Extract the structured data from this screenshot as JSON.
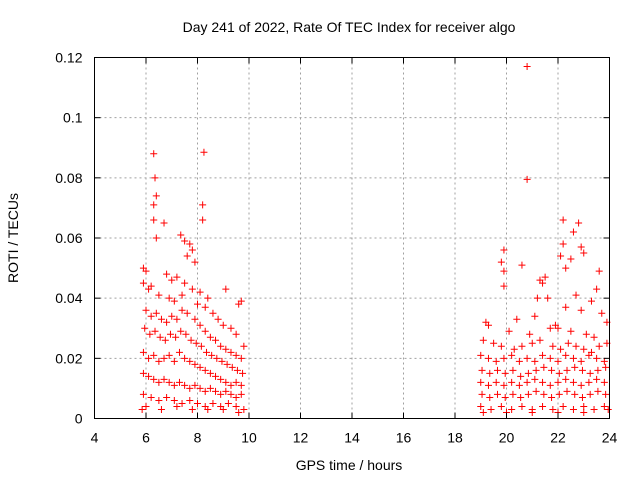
{
  "chart_data": {
    "type": "scatter",
    "title": "Day 241 of 2022, Rate Of TEC Index for receiver algo",
    "xlabel": "GPS time / hours",
    "ylabel": "ROTI / TECUs",
    "xlim": [
      4,
      24
    ],
    "ylim": [
      0,
      0.12
    ],
    "x_ticks": [
      "4",
      "6",
      "8",
      "10",
      "12",
      "14",
      "16",
      "18",
      "20",
      "22",
      "24"
    ],
    "y_ticks": [
      "0",
      "0.02",
      "0.04",
      "0.06",
      "0.08",
      "0.1",
      "0.12"
    ],
    "grid": true,
    "marker": "+",
    "color": "#ff0000",
    "points": [
      [
        6.3,
        0.088
      ],
      [
        8.25,
        0.0885
      ],
      [
        6.35,
        0.08
      ],
      [
        6.4,
        0.074
      ],
      [
        6.3,
        0.071
      ],
      [
        8.2,
        0.071
      ],
      [
        8.2,
        0.066
      ],
      [
        6.7,
        0.065
      ],
      [
        6.3,
        0.066
      ],
      [
        7.35,
        0.061
      ],
      [
        6.4,
        0.06
      ],
      [
        7.5,
        0.059
      ],
      [
        7.7,
        0.058
      ],
      [
        7.8,
        0.056
      ],
      [
        7.6,
        0.054
      ],
      [
        7.9,
        0.052
      ],
      [
        5.9,
        0.05
      ],
      [
        6.0,
        0.049
      ],
      [
        6.8,
        0.048
      ],
      [
        7.2,
        0.047
      ],
      [
        7.0,
        0.046
      ],
      [
        7.5,
        0.045
      ],
      [
        6.2,
        0.044
      ],
      [
        8.4,
        0.04
      ],
      [
        8.1,
        0.042
      ],
      [
        9.1,
        0.043
      ],
      [
        9.7,
        0.039
      ],
      [
        9.6,
        0.038
      ],
      [
        5.9,
        0.045
      ],
      [
        6.1,
        0.043
      ],
      [
        6.5,
        0.041
      ],
      [
        6.9,
        0.04
      ],
      [
        7.1,
        0.039
      ],
      [
        7.4,
        0.041
      ],
      [
        7.8,
        0.043
      ],
      [
        8.0,
        0.038
      ],
      [
        8.3,
        0.037
      ],
      [
        8.6,
        0.035
      ],
      [
        8.8,
        0.033
      ],
      [
        9.0,
        0.031
      ],
      [
        9.3,
        0.03
      ],
      [
        9.5,
        0.028
      ],
      [
        9.8,
        0.024
      ],
      [
        6.0,
        0.036
      ],
      [
        6.2,
        0.034
      ],
      [
        6.4,
        0.035
      ],
      [
        6.6,
        0.033
      ],
      [
        6.8,
        0.032
      ],
      [
        7.0,
        0.034
      ],
      [
        7.2,
        0.033
      ],
      [
        7.4,
        0.036
      ],
      [
        7.6,
        0.035
      ],
      [
        7.9,
        0.033
      ],
      [
        8.1,
        0.031
      ],
      [
        8.3,
        0.029
      ],
      [
        8.5,
        0.027
      ],
      [
        8.7,
        0.026
      ],
      [
        8.9,
        0.024
      ],
      [
        9.1,
        0.023
      ],
      [
        9.3,
        0.022
      ],
      [
        9.5,
        0.021
      ],
      [
        9.7,
        0.02
      ],
      [
        5.95,
        0.03
      ],
      [
        6.15,
        0.028
      ],
      [
        6.35,
        0.029
      ],
      [
        6.55,
        0.027
      ],
      [
        6.75,
        0.026
      ],
      [
        6.95,
        0.028
      ],
      [
        7.15,
        0.027
      ],
      [
        7.35,
        0.029
      ],
      [
        7.55,
        0.028
      ],
      [
        7.75,
        0.026
      ],
      [
        7.95,
        0.025
      ],
      [
        8.15,
        0.024
      ],
      [
        8.35,
        0.022
      ],
      [
        8.55,
        0.021
      ],
      [
        8.75,
        0.02
      ],
      [
        8.95,
        0.019
      ],
      [
        9.15,
        0.018
      ],
      [
        9.35,
        0.017
      ],
      [
        9.55,
        0.016
      ],
      [
        9.75,
        0.015
      ],
      [
        5.9,
        0.022
      ],
      [
        6.1,
        0.02
      ],
      [
        6.3,
        0.021
      ],
      [
        6.5,
        0.019
      ],
      [
        6.7,
        0.02
      ],
      [
        6.9,
        0.021
      ],
      [
        7.1,
        0.019
      ],
      [
        7.3,
        0.022
      ],
      [
        7.5,
        0.02
      ],
      [
        7.7,
        0.019
      ],
      [
        7.9,
        0.018
      ],
      [
        8.1,
        0.017
      ],
      [
        8.3,
        0.016
      ],
      [
        8.5,
        0.015
      ],
      [
        8.7,
        0.014
      ],
      [
        8.9,
        0.013
      ],
      [
        9.1,
        0.012
      ],
      [
        9.3,
        0.011
      ],
      [
        9.5,
        0.012
      ],
      [
        9.7,
        0.011
      ],
      [
        5.9,
        0.015
      ],
      [
        6.1,
        0.014
      ],
      [
        6.3,
        0.013
      ],
      [
        6.5,
        0.012
      ],
      [
        6.7,
        0.013
      ],
      [
        6.9,
        0.012
      ],
      [
        7.1,
        0.011
      ],
      [
        7.3,
        0.012
      ],
      [
        7.5,
        0.011
      ],
      [
        7.7,
        0.01
      ],
      [
        7.9,
        0.011
      ],
      [
        8.1,
        0.01
      ],
      [
        8.3,
        0.009
      ],
      [
        8.5,
        0.01
      ],
      [
        8.7,
        0.009
      ],
      [
        8.9,
        0.008
      ],
      [
        9.1,
        0.009
      ],
      [
        9.3,
        0.008
      ],
      [
        9.5,
        0.007
      ],
      [
        9.7,
        0.008
      ],
      [
        5.9,
        0.008
      ],
      [
        6.2,
        0.007
      ],
      [
        6.5,
        0.006
      ],
      [
        6.8,
        0.007
      ],
      [
        7.1,
        0.006
      ],
      [
        7.4,
        0.005
      ],
      [
        7.7,
        0.006
      ],
      [
        8.0,
        0.005
      ],
      [
        8.3,
        0.004
      ],
      [
        8.6,
        0.005
      ],
      [
        8.9,
        0.004
      ],
      [
        9.2,
        0.005
      ],
      [
        9.5,
        0.004
      ],
      [
        9.8,
        0.003
      ],
      [
        5.85,
        0.003
      ],
      [
        6.0,
        0.004
      ],
      [
        6.6,
        0.003
      ],
      [
        7.2,
        0.004
      ],
      [
        7.8,
        0.003
      ],
      [
        8.4,
        0.003
      ],
      [
        9.0,
        0.003
      ],
      [
        9.6,
        0.002
      ],
      [
        20.8,
        0.117
      ],
      [
        20.8,
        0.0795
      ],
      [
        22.2,
        0.066
      ],
      [
        22.8,
        0.065
      ],
      [
        22.6,
        0.062
      ],
      [
        22.2,
        0.058
      ],
      [
        22.9,
        0.057
      ],
      [
        19.9,
        0.056
      ],
      [
        23.0,
        0.055
      ],
      [
        22.1,
        0.054
      ],
      [
        22.5,
        0.053
      ],
      [
        19.8,
        0.052
      ],
      [
        20.6,
        0.051
      ],
      [
        22.3,
        0.05
      ],
      [
        19.9,
        0.049
      ],
      [
        23.6,
        0.049
      ],
      [
        21.5,
        0.047
      ],
      [
        21.3,
        0.046
      ],
      [
        21.4,
        0.045
      ],
      [
        23.5,
        0.043
      ],
      [
        21.2,
        0.04
      ],
      [
        19.9,
        0.044
      ],
      [
        21.6,
        0.04
      ],
      [
        23.3,
        0.039
      ],
      [
        22.7,
        0.041
      ],
      [
        22.9,
        0.036
      ],
      [
        22.3,
        0.037
      ],
      [
        23.7,
        0.035
      ],
      [
        21.1,
        0.034
      ],
      [
        20.4,
        0.033
      ],
      [
        19.2,
        0.032
      ],
      [
        19.3,
        0.031
      ],
      [
        23.9,
        0.032
      ],
      [
        21.9,
        0.031
      ],
      [
        22.0,
        0.03
      ],
      [
        20.1,
        0.029
      ],
      [
        20.9,
        0.028
      ],
      [
        21.7,
        0.03
      ],
      [
        22.5,
        0.029
      ],
      [
        23.1,
        0.028
      ],
      [
        23.4,
        0.027
      ],
      [
        19.1,
        0.026
      ],
      [
        19.5,
        0.025
      ],
      [
        19.8,
        0.024
      ],
      [
        20.3,
        0.023
      ],
      [
        20.6,
        0.024
      ],
      [
        21.0,
        0.025
      ],
      [
        21.3,
        0.026
      ],
      [
        21.8,
        0.024
      ],
      [
        22.1,
        0.023
      ],
      [
        22.4,
        0.025
      ],
      [
        22.7,
        0.024
      ],
      [
        23.0,
        0.023
      ],
      [
        23.3,
        0.022
      ],
      [
        23.6,
        0.024
      ],
      [
        23.9,
        0.025
      ],
      [
        19.0,
        0.021
      ],
      [
        19.3,
        0.02
      ],
      [
        19.6,
        0.019
      ],
      [
        19.9,
        0.02
      ],
      [
        20.2,
        0.021
      ],
      [
        20.5,
        0.019
      ],
      [
        20.8,
        0.02
      ],
      [
        21.1,
        0.019
      ],
      [
        21.4,
        0.021
      ],
      [
        21.7,
        0.02
      ],
      [
        22.0,
        0.019
      ],
      [
        22.3,
        0.021
      ],
      [
        22.6,
        0.02
      ],
      [
        22.9,
        0.019
      ],
      [
        23.2,
        0.021
      ],
      [
        23.5,
        0.02
      ],
      [
        23.8,
        0.019
      ],
      [
        19.05,
        0.016
      ],
      [
        19.35,
        0.015
      ],
      [
        19.65,
        0.016
      ],
      [
        19.95,
        0.015
      ],
      [
        20.25,
        0.016
      ],
      [
        20.55,
        0.014
      ],
      [
        20.85,
        0.015
      ],
      [
        21.15,
        0.016
      ],
      [
        21.45,
        0.017
      ],
      [
        21.75,
        0.016
      ],
      [
        22.05,
        0.015
      ],
      [
        22.35,
        0.016
      ],
      [
        22.65,
        0.017
      ],
      [
        22.95,
        0.016
      ],
      [
        23.25,
        0.015
      ],
      [
        23.55,
        0.016
      ],
      [
        23.85,
        0.017
      ],
      [
        19.0,
        0.012
      ],
      [
        19.3,
        0.011
      ],
      [
        19.6,
        0.012
      ],
      [
        19.9,
        0.011
      ],
      [
        20.2,
        0.012
      ],
      [
        20.5,
        0.011
      ],
      [
        20.8,
        0.012
      ],
      [
        21.1,
        0.013
      ],
      [
        21.4,
        0.012
      ],
      [
        21.7,
        0.011
      ],
      [
        22.0,
        0.012
      ],
      [
        22.3,
        0.013
      ],
      [
        22.6,
        0.012
      ],
      [
        22.9,
        0.011
      ],
      [
        23.2,
        0.012
      ],
      [
        23.5,
        0.013
      ],
      [
        23.8,
        0.012
      ],
      [
        19.05,
        0.008
      ],
      [
        19.35,
        0.007
      ],
      [
        19.65,
        0.008
      ],
      [
        19.95,
        0.007
      ],
      [
        20.25,
        0.008
      ],
      [
        20.55,
        0.007
      ],
      [
        20.85,
        0.008
      ],
      [
        21.15,
        0.009
      ],
      [
        21.45,
        0.008
      ],
      [
        21.75,
        0.007
      ],
      [
        22.05,
        0.008
      ],
      [
        22.35,
        0.009
      ],
      [
        22.65,
        0.008
      ],
      [
        22.95,
        0.007
      ],
      [
        23.25,
        0.008
      ],
      [
        23.55,
        0.009
      ],
      [
        23.85,
        0.008
      ],
      [
        19.0,
        0.004
      ],
      [
        19.4,
        0.003
      ],
      [
        19.8,
        0.004
      ],
      [
        20.2,
        0.003
      ],
      [
        20.6,
        0.004
      ],
      [
        21.0,
        0.003
      ],
      [
        21.4,
        0.004
      ],
      [
        21.8,
        0.003
      ],
      [
        22.2,
        0.004
      ],
      [
        22.6,
        0.003
      ],
      [
        23.0,
        0.004
      ],
      [
        23.4,
        0.003
      ],
      [
        23.8,
        0.004
      ],
      [
        23.95,
        0.003
      ],
      [
        19.1,
        0.002
      ],
      [
        20.0,
        0.002
      ],
      [
        21.0,
        0.002
      ],
      [
        22.0,
        0.002
      ],
      [
        23.0,
        0.002
      ]
    ]
  }
}
